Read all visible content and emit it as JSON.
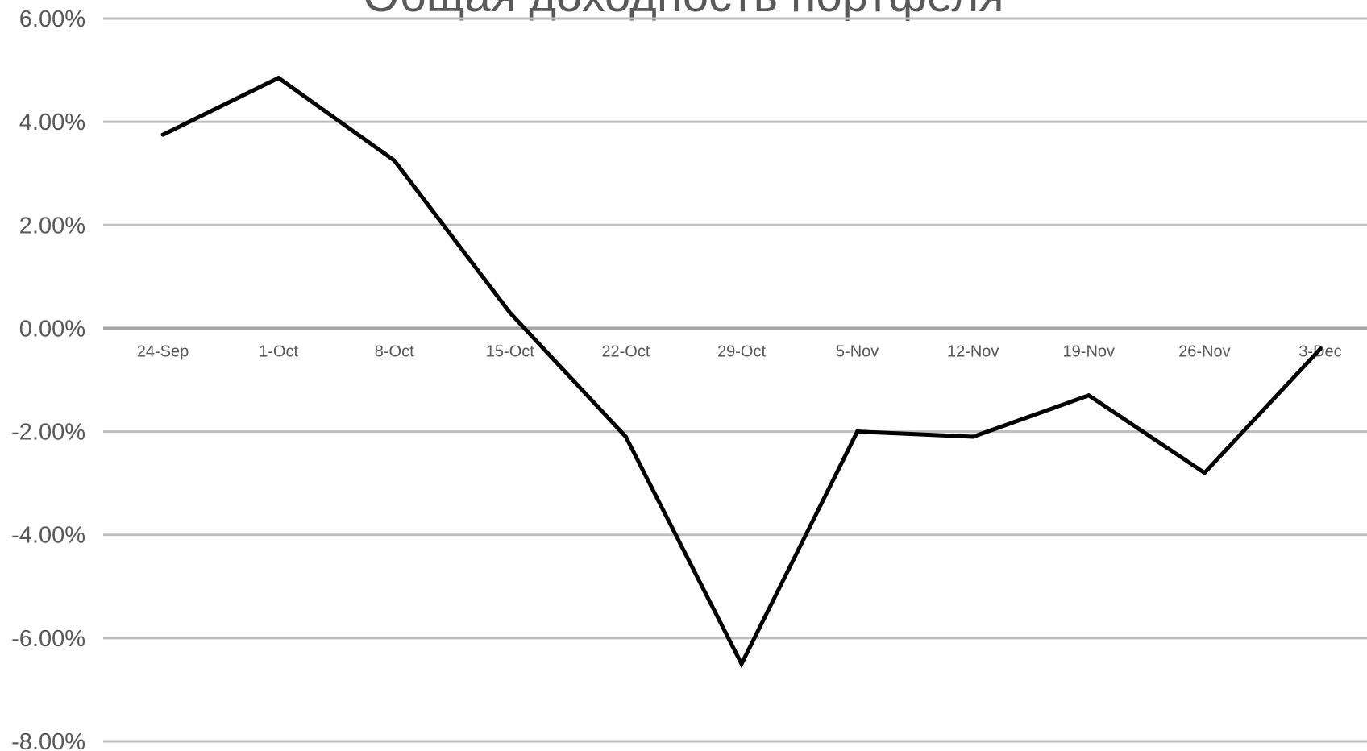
{
  "chart_data": {
    "type": "line",
    "title": "Общая доходность портфеля",
    "xlabel": "",
    "ylabel": "",
    "categories": [
      "24-Sep",
      "1-Oct",
      "8-Oct",
      "15-Oct",
      "22-Oct",
      "29-Oct",
      "5-Nov",
      "12-Nov",
      "19-Nov",
      "26-Nov",
      "3-Dec"
    ],
    "series": [
      {
        "values": [
          3.75,
          4.85,
          3.25,
          0.3,
          -2.1,
          -6.5,
          -2.0,
          -2.1,
          -1.3,
          -2.8,
          -0.4
        ]
      }
    ],
    "y_ticks": [
      "6.00%",
      "4.00%",
      "2.00%",
      "0.00%",
      "-2.00%",
      "-4.00%",
      "-6.00%",
      "-8.00%"
    ],
    "ylim": [
      -8,
      6
    ],
    "grid": true,
    "colors": {
      "line": "#000000",
      "grid": "#bfbfbf",
      "zero_line": "#a6a6a6",
      "tick_label": "#595959",
      "title": "#595959"
    }
  }
}
